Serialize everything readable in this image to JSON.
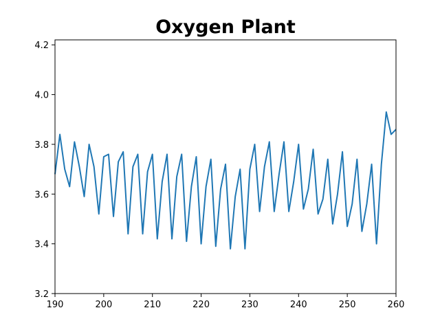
{
  "chart_data": {
    "type": "line",
    "title": "Oxygen Plant",
    "xlabel": "",
    "ylabel": "",
    "xlim": [
      190,
      260
    ],
    "ylim": [
      3.2,
      4.22
    ],
    "x_ticks": [
      190,
      200,
      210,
      220,
      230,
      240,
      250,
      260
    ],
    "y_ticks": [
      3.2,
      3.4,
      3.6,
      3.8,
      4.0,
      4.2
    ],
    "grid": false,
    "line_color": "#1f77b4",
    "series": [
      {
        "x": [
          190,
          191,
          192,
          193,
          194,
          195,
          196,
          197,
          198,
          199,
          200,
          201,
          202,
          203,
          204,
          205,
          206,
          207,
          208,
          209,
          210,
          211,
          212,
          213,
          214,
          215,
          216,
          217,
          218,
          219,
          220,
          221,
          222,
          223,
          224,
          225,
          226,
          227,
          228,
          229,
          230,
          231,
          232,
          233,
          234,
          235,
          236,
          237,
          238,
          239,
          240,
          241,
          242,
          243,
          244,
          245,
          246,
          247,
          248,
          249,
          250,
          251,
          252,
          253,
          254,
          255,
          256,
          257,
          258,
          259,
          260
        ],
        "y": [
          3.68,
          3.84,
          3.7,
          3.63,
          3.81,
          3.71,
          3.59,
          3.8,
          3.71,
          3.52,
          3.75,
          3.76,
          3.51,
          3.73,
          3.77,
          3.44,
          3.71,
          3.76,
          3.44,
          3.69,
          3.76,
          3.42,
          3.65,
          3.76,
          3.42,
          3.67,
          3.76,
          3.41,
          3.63,
          3.75,
          3.4,
          3.63,
          3.74,
          3.39,
          3.62,
          3.72,
          3.38,
          3.59,
          3.7,
          3.38,
          3.7,
          3.8,
          3.53,
          3.71,
          3.81,
          3.53,
          3.68,
          3.81,
          3.53,
          3.65,
          3.8,
          3.54,
          3.62,
          3.78,
          3.52,
          3.58,
          3.74,
          3.48,
          3.6,
          3.77,
          3.47,
          3.56,
          3.74,
          3.45,
          3.56,
          3.72,
          3.4,
          3.72,
          3.93,
          3.84,
          3.86
        ]
      }
    ]
  }
}
